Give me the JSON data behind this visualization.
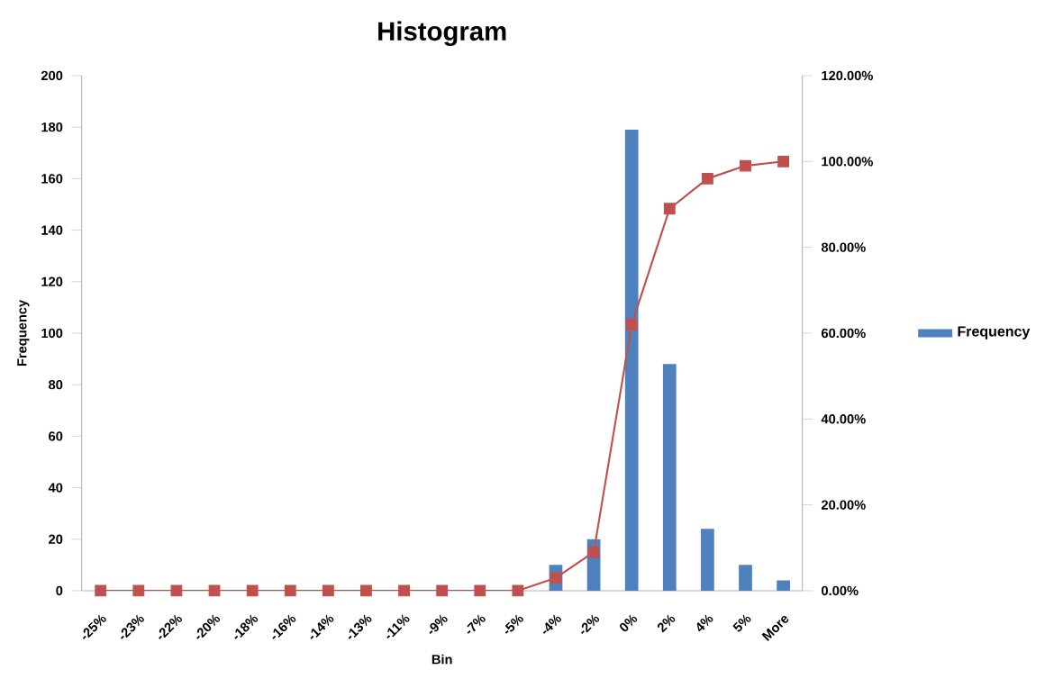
{
  "chart_data": {
    "type": "bar",
    "title": "Histogram",
    "xlabel": "Bin",
    "ylabel": "Frequency",
    "categories": [
      "-25%",
      "-23%",
      "-22%",
      "-20%",
      "-18%",
      "-16%",
      "-14%",
      "-13%",
      "-11%",
      "-9%",
      "-7%",
      "-5%",
      "-4%",
      "-2%",
      "0%",
      "2%",
      "4%",
      "5%",
      "More"
    ],
    "series": [
      {
        "name": "Frequency",
        "color": "#4f81bd",
        "values": [
          null,
          null,
          null,
          null,
          null,
          null,
          null,
          null,
          null,
          null,
          null,
          null,
          10,
          20,
          179,
          88,
          24,
          10,
          4
        ]
      },
      {
        "type": "line",
        "axis": "y2",
        "color": "#c0504d",
        "values": [
          0,
          0,
          0,
          0,
          0,
          0,
          0,
          0,
          0,
          0,
          0,
          0,
          3,
          9,
          62,
          89,
          96,
          99,
          100
        ]
      }
    ],
    "ylim": [
      0,
      200
    ],
    "yticks": [
      0,
      20,
      40,
      60,
      80,
      100,
      120,
      140,
      160,
      180,
      200
    ],
    "y2lim": [
      0,
      120
    ],
    "y2ticks": [
      {
        "value": 0,
        "label": "0.00%"
      },
      {
        "value": 20,
        "label": "20.00%"
      },
      {
        "value": 40,
        "label": "40.00%"
      },
      {
        "value": 60,
        "label": "60.00%"
      },
      {
        "value": 80,
        "label": "80.00%"
      },
      {
        "value": 100,
        "label": "100.00%"
      },
      {
        "value": 120,
        "label": "120.00%"
      }
    ],
    "marker": "square",
    "legend": "right"
  }
}
